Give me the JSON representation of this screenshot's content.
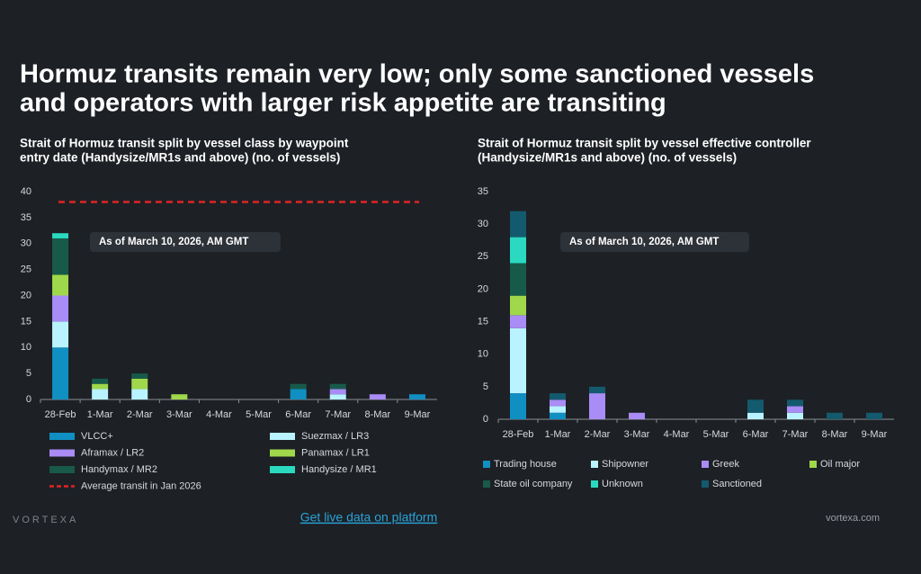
{
  "title": [
    "Hormuz transits remain very low; only some sanctioned vessels",
    "and operators with larger risk appetite are transiting"
  ],
  "footer": {
    "logo": "VORTEXA",
    "link": "Get live data on platform",
    "site": "vortexa.com"
  },
  "chart_data": [
    {
      "type": "stacked_bar",
      "title": [
        "Strait of Hormuz transit split by vessel class by waypoint",
        "entry date  (Handysize/MR1s and above) (no. of vessels)"
      ],
      "annotation": "As of March 10, 2026, AM GMT",
      "categories": [
        "28-Feb",
        "1-Mar",
        "2-Mar",
        "3-Mar",
        "4-Mar",
        "5-Mar",
        "6-Mar",
        "7-Mar",
        "8-Mar",
        "9-Mar"
      ],
      "series": [
        {
          "name": "VLCC+",
          "color": "#108fc2",
          "values": [
            10,
            0,
            0,
            0,
            0,
            0,
            2,
            0,
            0,
            1
          ]
        },
        {
          "name": "Suezmax / LR3",
          "color": "#b8f3ff",
          "values": [
            5,
            2,
            2,
            0,
            0,
            0,
            0,
            1,
            0,
            0
          ]
        },
        {
          "name": "Aframax / LR2",
          "color": "#a98cf5",
          "values": [
            5,
            0,
            0,
            0,
            0,
            0,
            0,
            1,
            1,
            0
          ]
        },
        {
          "name": "Panamax / LR1",
          "color": "#9fd84a",
          "values": [
            4,
            1,
            2,
            1,
            0,
            0,
            0,
            0,
            0,
            0
          ]
        },
        {
          "name": "Handymax / MR2",
          "color": "#185a4a",
          "values": [
            7,
            1,
            1,
            0,
            0,
            0,
            1,
            1,
            0,
            0
          ]
        },
        {
          "name": "Handysize / MR1",
          "color": "#2bd9c1",
          "values": [
            1,
            0,
            0,
            0,
            0,
            0,
            0,
            0,
            0,
            0
          ]
        }
      ],
      "reference_line": {
        "name": "Average transit in Jan 2026",
        "value": 38,
        "color": "#e02424"
      },
      "ylim": [
        0,
        40
      ],
      "yticks": [
        0,
        5,
        10,
        15,
        20,
        25,
        30,
        35,
        40
      ]
    },
    {
      "type": "stacked_bar",
      "title": [
        "Strait of Hormuz transit split by vessel effective controller",
        "(Handysize/MR1s and above) (no. of vessels)"
      ],
      "annotation": "As of March 10, 2026, AM GMT",
      "categories": [
        "28-Feb",
        "1-Mar",
        "2-Mar",
        "3-Mar",
        "4-Mar",
        "5-Mar",
        "6-Mar",
        "7-Mar",
        "8-Mar",
        "9-Mar"
      ],
      "series": [
        {
          "name": "Trading house",
          "color": "#108fc2",
          "values": [
            4,
            1,
            0,
            0,
            0,
            0,
            0,
            0,
            0,
            0
          ]
        },
        {
          "name": "Shipowner",
          "color": "#b8f3ff",
          "values": [
            10,
            1,
            0,
            0,
            0,
            0,
            1,
            1,
            0,
            0
          ]
        },
        {
          "name": "Greek",
          "color": "#a98cf5",
          "values": [
            2,
            1,
            4,
            1,
            0,
            0,
            0,
            1,
            0,
            0
          ]
        },
        {
          "name": "Oil major",
          "color": "#9fd84a",
          "values": [
            3,
            0,
            0,
            0,
            0,
            0,
            0,
            0,
            0,
            0
          ]
        },
        {
          "name": "State oil company",
          "color": "#185a4a",
          "values": [
            5,
            0,
            0,
            0,
            0,
            0,
            0,
            0,
            0,
            0
          ]
        },
        {
          "name": "Unknown",
          "color": "#2bd9c1",
          "values": [
            4,
            0,
            0,
            0,
            0,
            0,
            0,
            0,
            0,
            0
          ]
        },
        {
          "name": "Sanctioned",
          "color": "#145a6e",
          "values": [
            4,
            1,
            1,
            0,
            0,
            0,
            2,
            1,
            1,
            1
          ]
        }
      ],
      "ylim": [
        0,
        35
      ],
      "yticks": [
        0,
        5,
        10,
        15,
        20,
        25,
        30,
        35
      ]
    }
  ]
}
